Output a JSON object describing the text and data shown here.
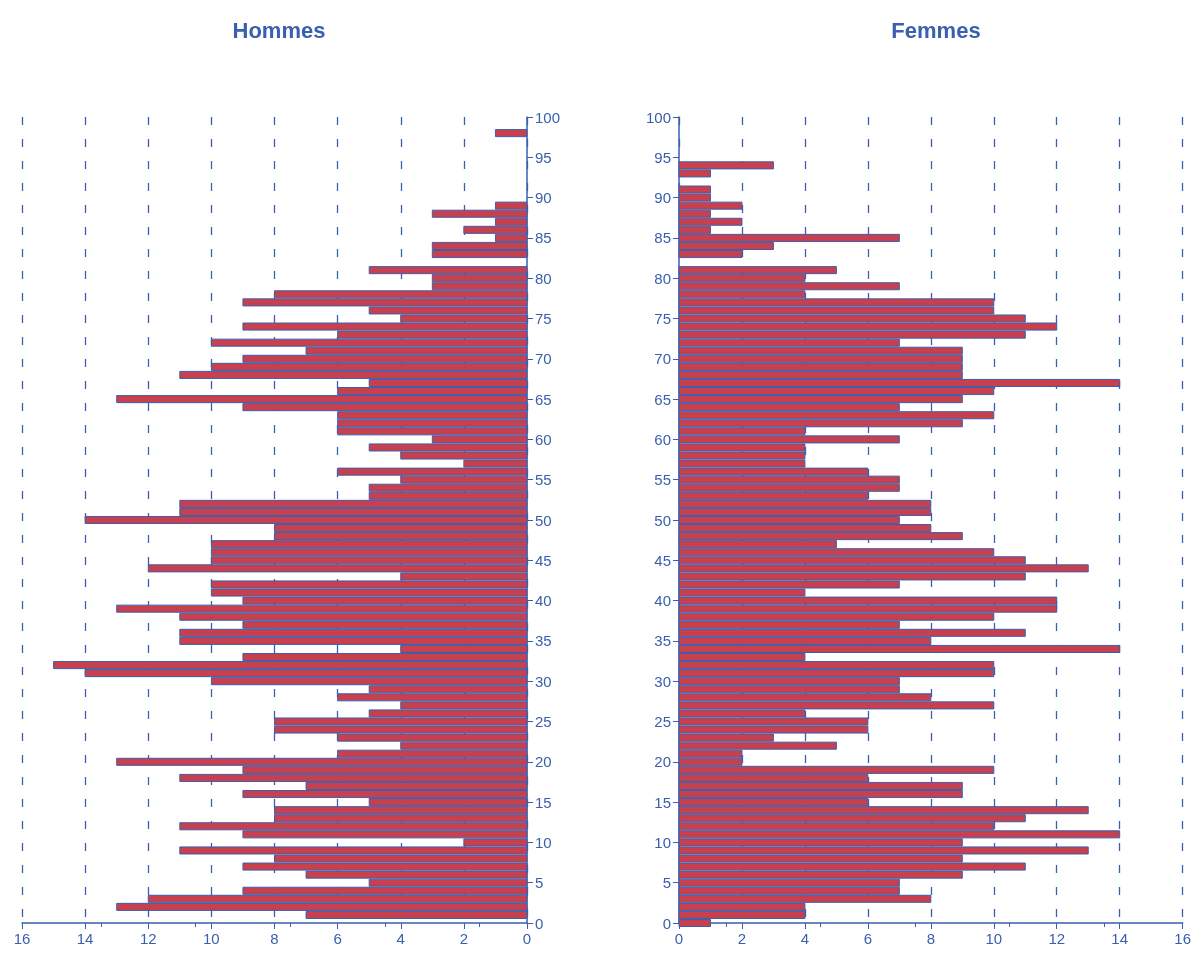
{
  "chart_data": [
    {
      "type": "bar",
      "orientation": "horizontal",
      "title": "Hommes",
      "color": "#c8404e",
      "x": [
        0,
        1,
        2,
        3,
        4,
        5,
        6,
        7,
        8,
        9,
        10,
        11,
        12,
        13,
        14,
        15,
        16,
        17,
        18,
        19,
        20,
        21,
        22,
        23,
        24,
        25,
        26,
        27,
        28,
        29,
        30,
        31,
        32,
        33,
        34,
        35,
        36,
        37,
        38,
        39,
        40,
        41,
        42,
        43,
        44,
        45,
        46,
        47,
        48,
        49,
        50,
        51,
        52,
        53,
        54,
        55,
        56,
        57,
        58,
        59,
        60,
        61,
        62,
        63,
        64,
        65,
        66,
        67,
        68,
        69,
        70,
        71,
        72,
        73,
        74,
        75,
        76,
        77,
        78,
        79,
        80,
        81,
        82,
        83,
        84,
        85,
        86,
        87,
        88,
        89,
        90,
        91,
        92,
        93,
        94,
        95,
        96,
        97,
        98
      ],
      "values": [
        0,
        7,
        13,
        12,
        9,
        5,
        7,
        9,
        8,
        11,
        2,
        9,
        11,
        8,
        8,
        5,
        9,
        7,
        11,
        9,
        13,
        6,
        4,
        6,
        8,
        8,
        5,
        4,
        6,
        5,
        10,
        14,
        15,
        9,
        4,
        11,
        11,
        9,
        11,
        13,
        9,
        10,
        10,
        4,
        12,
        10,
        10,
        10,
        8,
        8,
        14,
        11,
        11,
        5,
        5,
        4,
        6,
        2,
        4,
        5,
        3,
        6,
        6,
        6,
        9,
        13,
        6,
        5,
        11,
        10,
        9,
        7,
        10,
        6,
        9,
        4,
        5,
        9,
        8,
        3,
        3,
        5,
        0,
        3,
        3,
        1,
        2,
        1,
        3,
        1,
        0,
        0,
        0,
        0,
        0,
        0,
        0,
        0,
        1
      ],
      "xlim": [
        16,
        0
      ],
      "xticks": [
        16,
        14,
        12,
        10,
        8,
        6,
        4,
        2,
        0
      ],
      "ylim": [
        0,
        100
      ],
      "yticks": [
        0,
        5,
        10,
        15,
        20,
        25,
        30,
        35,
        40,
        45,
        50,
        55,
        60,
        65,
        70,
        75,
        80,
        85,
        90,
        95,
        100
      ],
      "grid": "x"
    },
    {
      "type": "bar",
      "orientation": "horizontal",
      "title": "Femmes",
      "color": "#c8404e",
      "x": [
        0,
        1,
        2,
        3,
        4,
        5,
        6,
        7,
        8,
        9,
        10,
        11,
        12,
        13,
        14,
        15,
        16,
        17,
        18,
        19,
        20,
        21,
        22,
        23,
        24,
        25,
        26,
        27,
        28,
        29,
        30,
        31,
        32,
        33,
        34,
        35,
        36,
        37,
        38,
        39,
        40,
        41,
        42,
        43,
        44,
        45,
        46,
        47,
        48,
        49,
        50,
        51,
        52,
        53,
        54,
        55,
        56,
        57,
        58,
        59,
        60,
        61,
        62,
        63,
        64,
        65,
        66,
        67,
        68,
        69,
        70,
        71,
        72,
        73,
        74,
        75,
        76,
        77,
        78,
        79,
        80,
        81,
        82,
        83,
        84,
        85,
        86,
        87,
        88,
        89,
        90,
        91,
        92,
        93,
        94
      ],
      "values": [
        1,
        4,
        4,
        8,
        7,
        7,
        9,
        11,
        9,
        13,
        9,
        14,
        10,
        11,
        13,
        6,
        9,
        9,
        6,
        10,
        2,
        2,
        5,
        3,
        6,
        6,
        4,
        10,
        8,
        7,
        7,
        10,
        10,
        4,
        14,
        8,
        11,
        7,
        10,
        12,
        12,
        4,
        7,
        11,
        13,
        11,
        10,
        5,
        9,
        8,
        7,
        8,
        8,
        6,
        7,
        7,
        6,
        4,
        4,
        4,
        7,
        4,
        9,
        10,
        7,
        9,
        10,
        14,
        9,
        9,
        9,
        9,
        7,
        11,
        12,
        11,
        10,
        10,
        4,
        7,
        4,
        5,
        0,
        2,
        3,
        7,
        1,
        2,
        1,
        2,
        1,
        1,
        0,
        1,
        3
      ],
      "xlim": [
        0,
        16
      ],
      "xticks": [
        0,
        2,
        4,
        6,
        8,
        10,
        12,
        14,
        16
      ],
      "ylim": [
        0,
        100
      ],
      "yticks": [
        0,
        5,
        10,
        15,
        20,
        25,
        30,
        35,
        40,
        45,
        50,
        55,
        60,
        65,
        70,
        75,
        80,
        85,
        90,
        95,
        100
      ],
      "grid": "x"
    }
  ]
}
